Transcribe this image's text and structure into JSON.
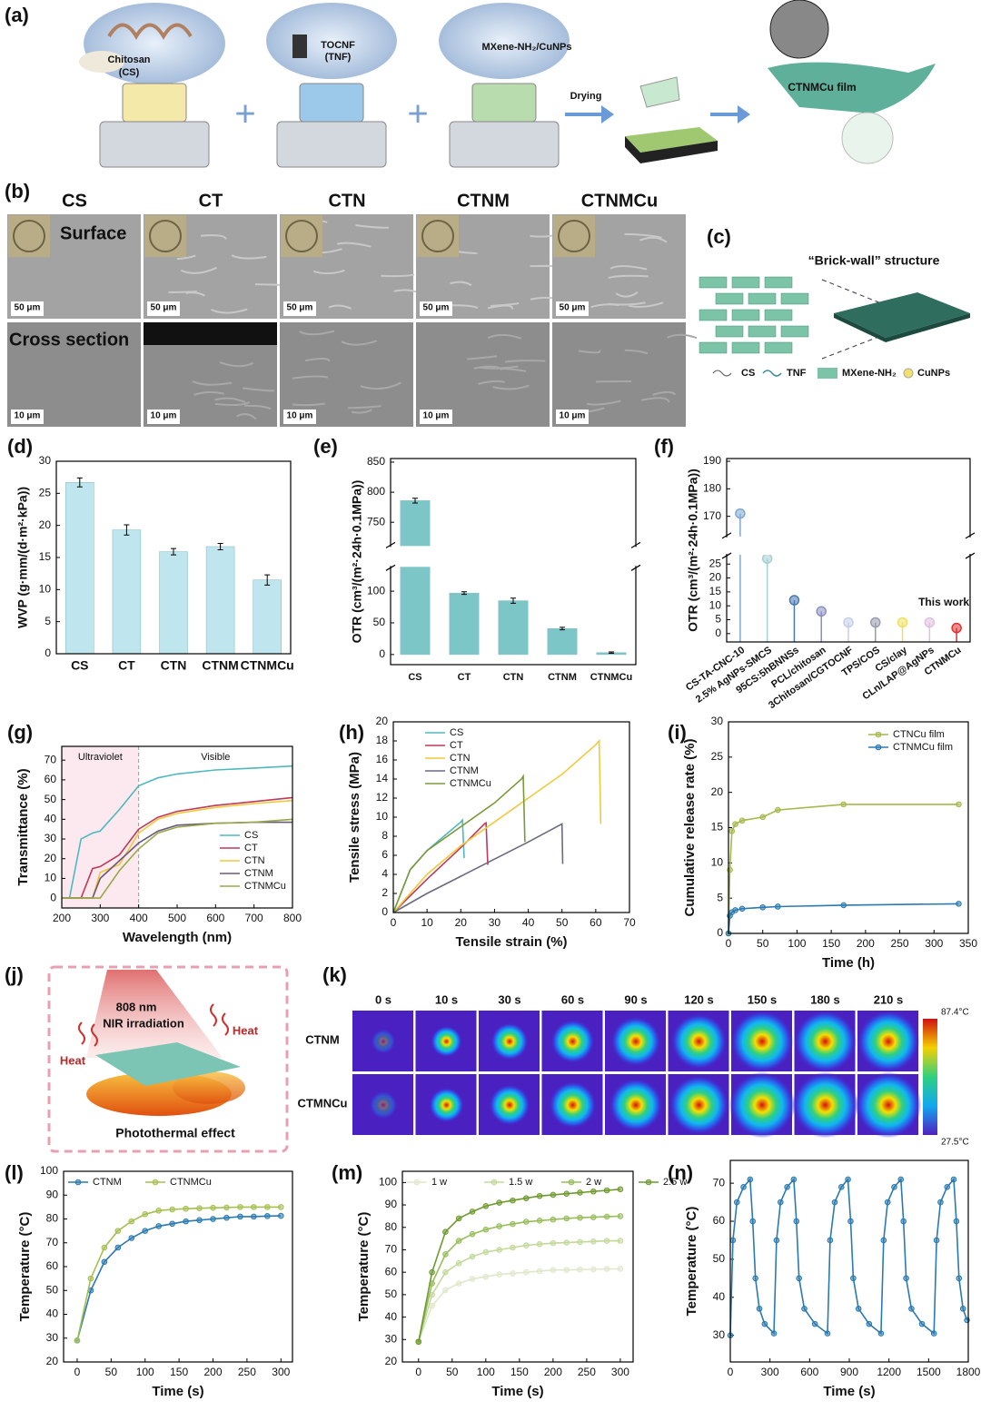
{
  "scheme_a": {
    "label": "(a)",
    "chitosan": [
      "Chitosan",
      "(CS)"
    ],
    "tocnf": [
      "TOCNF",
      "(TNF)"
    ],
    "mxene": "MXene-NH₂/CuNPs",
    "step": "Drying",
    "product": "CTNMCu film"
  },
  "sem_b": {
    "label": "(b)",
    "columns": [
      "CS",
      "CT",
      "CTN",
      "CTNM",
      "CTNMCu"
    ],
    "rows": [
      "Surface",
      "Cross section"
    ],
    "scale_bars": [
      "50 μm",
      "10 μm"
    ]
  },
  "structure_c": {
    "label": "(c)",
    "title": "“Brick-wall” structure",
    "legend": [
      "CS",
      "TNF",
      "MXene-NH₂",
      "CuNPs"
    ]
  },
  "scheme_j": {
    "label": "(j)",
    "beam": [
      "808 nm",
      "NIR irradiation"
    ],
    "heat": [
      "Heat",
      "Heat"
    ],
    "caption": "Photothermal effect"
  },
  "thermal_k": {
    "label": "(k)",
    "times": [
      "0 s",
      "10 s",
      "30 s",
      "60 s",
      "90 s",
      "120 s",
      "150 s",
      "180 s",
      "210 s"
    ],
    "rows": [
      "CTNM",
      "CTMNCu"
    ],
    "scale": [
      "87.4°C",
      "27.5°C"
    ]
  },
  "chart_data": [
    {
      "label": "(d)",
      "type": "bar",
      "ylabel": "WVP (g·mm/(d·m²·kPa))",
      "categories": [
        "CS",
        "CT",
        "CTN",
        "CTNM",
        "CTNMCu"
      ],
      "values": [
        26.7,
        19.3,
        15.9,
        16.7,
        11.5
      ],
      "errors": [
        0.7,
        0.8,
        0.5,
        0.5,
        0.8
      ],
      "color": "#bfe5ee",
      "ylim": [
        0,
        30
      ],
      "yticks": [
        0,
        5,
        10,
        15,
        20,
        25,
        30
      ]
    },
    {
      "label": "(e)",
      "type": "bar",
      "ylabel": "OTR (cm³/(m²·24h·0.1MPa))",
      "categories": [
        "CS",
        "CT",
        "CTN",
        "CTNM",
        "CTNMCu"
      ],
      "values": [
        786,
        97,
        85,
        41,
        3
      ],
      "errors": [
        4,
        2,
        4,
        2,
        1
      ],
      "color": "#7cc6c8",
      "ylim": [
        -16,
        856
      ],
      "ybreak": [
        137,
        712
      ],
      "yticks": [
        0,
        50,
        100,
        750,
        800,
        850
      ]
    },
    {
      "label": "(f)",
      "type": "lollipop",
      "ylabel": "OTR (cm³/(m²·24h·0.1MPa))",
      "categories": [
        "CS-TA-CNC-10",
        "2.5% AgNPs-SMCS",
        "95CS:5hBNNSs",
        "PCL/chitosan",
        "3Chitosan/CGTOCNF",
        "TPS/COS",
        "CS/clay",
        "CLn/LAP@AgNPs",
        "CTNMCu"
      ],
      "values": [
        171,
        27,
        12,
        8,
        4,
        4,
        4,
        4,
        2
      ],
      "colors": [
        "#7fa8d0",
        "#a6d0d6",
        "#4a78b0",
        "#8a8fc0",
        "#c8cde8",
        "#9a9ab0",
        "#f0e060",
        "#e0c0e0",
        "#e03030"
      ],
      "ylim": [
        -3,
        191
      ],
      "ybreak": [
        28,
        163
      ],
      "yticks": [
        0,
        5,
        10,
        15,
        20,
        25,
        170,
        180,
        190
      ],
      "annotation": "This work"
    },
    {
      "label": "(g)",
      "type": "line",
      "xlabel": "Wavelength (nm)",
      "ylabel": "Transmittance (%)",
      "x": [
        200,
        220,
        250,
        280,
        300,
        350,
        400,
        450,
        500,
        600,
        700,
        800
      ],
      "series": [
        {
          "name": "CS",
          "color": "#4fb8bf",
          "values": [
            0,
            0,
            30,
            33,
            34,
            45,
            57,
            61,
            63,
            65,
            66,
            67
          ]
        },
        {
          "name": "CT",
          "color": "#c0395a",
          "values": [
            0,
            0,
            0,
            15,
            16,
            22,
            35,
            41,
            44,
            47,
            49,
            51
          ]
        },
        {
          "name": "CTN",
          "color": "#f0c93c",
          "values": [
            0,
            0,
            0,
            0,
            13,
            17,
            33,
            40,
            43,
            46,
            48,
            49.5
          ]
        },
        {
          "name": "CTNM",
          "color": "#6a5a7a",
          "values": [
            0,
            0,
            0,
            0,
            10,
            19,
            28,
            34,
            37,
            38,
            38.5,
            38.5
          ]
        },
        {
          "name": "CTNMCu",
          "color": "#9aa84a",
          "values": [
            0,
            0,
            0,
            0,
            0,
            14,
            25,
            33,
            36,
            38,
            38.5,
            40
          ]
        }
      ],
      "xlim": [
        200,
        800
      ],
      "xticks": [
        200,
        300,
        400,
        500,
        600,
        700,
        800
      ],
      "ylim": [
        -5,
        77
      ],
      "yticks": [
        0,
        10,
        20,
        30,
        40,
        50,
        60,
        70
      ],
      "divider": 400,
      "annotations": [
        "Ultraviolet",
        "Visible"
      ],
      "legend": "lower right"
    },
    {
      "label": "(h)",
      "type": "line",
      "xlabel": "Tensile strain (%)",
      "ylabel": "Tensile stress (MPa)",
      "series": [
        {
          "name": "CS",
          "color": "#4fb8bf",
          "x": [
            0,
            5,
            10,
            15,
            20,
            20.5,
            21
          ],
          "values": [
            0,
            4.5,
            6.5,
            8,
            9.5,
            9.7,
            5.7
          ]
        },
        {
          "name": "CT",
          "color": "#c0395a",
          "x": [
            0,
            10,
            20,
            27,
            27.5,
            28
          ],
          "values": [
            0,
            3.5,
            6.8,
            9.3,
            9.4,
            5
          ]
        },
        {
          "name": "CTN",
          "color": "#f0c93c",
          "x": [
            0,
            10,
            20,
            30,
            40,
            50,
            60,
            61,
            61.5
          ],
          "values": [
            0,
            4,
            7,
            9.5,
            12,
            14.5,
            17.6,
            18,
            9.3
          ]
        },
        {
          "name": "CTNM",
          "color": "#6a6a80",
          "x": [
            0,
            10,
            20,
            30,
            40,
            50,
            50.2
          ],
          "values": [
            0,
            2,
            3.8,
            5.6,
            7.4,
            9.3,
            5.1
          ]
        },
        {
          "name": "CTNMCu",
          "color": "#7a9a3a",
          "x": [
            0,
            5,
            10,
            20,
            30,
            38,
            38.5,
            39
          ],
          "values": [
            0,
            4.5,
            6.5,
            9,
            11.5,
            14,
            14.3,
            7.4
          ]
        }
      ],
      "xlim": [
        0,
        70
      ],
      "xticks": [
        0,
        10,
        20,
        30,
        40,
        50,
        60,
        70
      ],
      "ylim": [
        0,
        20
      ],
      "yticks": [
        0,
        2,
        4,
        6,
        8,
        10,
        12,
        14,
        16,
        18,
        20
      ],
      "legend": "upper left"
    },
    {
      "label": "(i)",
      "type": "line",
      "xlabel": "Time (h)",
      "ylabel": "Cumulative release rate (%)",
      "x": [
        0,
        2,
        5,
        10,
        20,
        50,
        72,
        168,
        336
      ],
      "series": [
        {
          "name": "CTNCu film",
          "color": "#a5b84a",
          "values": [
            0,
            9,
            14.5,
            15.5,
            16,
            16.5,
            17.5,
            18.3,
            18.3
          ]
        },
        {
          "name": "CTNMCu film",
          "color": "#2a7ab0",
          "values": [
            0,
            2.5,
            3,
            3.3,
            3.5,
            3.7,
            3.8,
            4,
            4.2
          ]
        }
      ],
      "xlim": [
        0,
        350
      ],
      "xticks": [
        0,
        50,
        100,
        150,
        200,
        250,
        300,
        350
      ],
      "ylim": [
        0,
        30
      ],
      "yticks": [
        0,
        5,
        10,
        15,
        20,
        25,
        30
      ],
      "markers": true,
      "legend": "upper right"
    },
    {
      "label": "(l)",
      "type": "line",
      "xlabel": "Time (s)",
      "ylabel": "Temperature (°C)",
      "x": [
        0,
        20,
        40,
        60,
        80,
        100,
        120,
        140,
        160,
        180,
        200,
        220,
        240,
        260,
        280,
        300
      ],
      "series": [
        {
          "name": "CTNM",
          "color": "#2a7ab0",
          "values": [
            29,
            50,
            62,
            68,
            72,
            75,
            77,
            78,
            79,
            79.5,
            80,
            80.5,
            81,
            81,
            81.2,
            81.3
          ]
        },
        {
          "name": "CTNMCu",
          "color": "#a5c050",
          "values": [
            29,
            55,
            68,
            75,
            79,
            82,
            83.5,
            84,
            84.3,
            84.5,
            84.7,
            84.8,
            85,
            85,
            85,
            85
          ]
        }
      ],
      "xlim": [
        -20,
        317
      ],
      "xticks": [
        0,
        50,
        100,
        150,
        200,
        250,
        300
      ],
      "ylim": [
        20,
        100
      ],
      "yticks": [
        20,
        30,
        40,
        50,
        60,
        70,
        80,
        90,
        100
      ],
      "markers": true,
      "legend": "upper left",
      "legend_orientation": "horizontal"
    },
    {
      "label": "(m)",
      "type": "line",
      "xlabel": "Time (s)",
      "ylabel": "Temperature (°C)",
      "x": [
        0,
        20,
        40,
        60,
        80,
        100,
        120,
        140,
        160,
        180,
        200,
        220,
        240,
        260,
        280,
        300
      ],
      "series": [
        {
          "name": "1 w",
          "color": "#dfe8cc",
          "values": [
            29,
            45,
            52,
            55,
            57,
            58,
            59,
            59.5,
            60,
            60.5,
            61,
            61,
            61.2,
            61.3,
            61.5,
            61.5
          ]
        },
        {
          "name": "1.5 w",
          "color": "#c3d99a",
          "values": [
            29,
            50,
            60,
            64,
            67,
            69,
            70,
            71,
            72,
            72.5,
            73,
            73.2,
            73.5,
            73.7,
            74,
            74
          ]
        },
        {
          "name": "2 w",
          "color": "#98bd5c",
          "values": [
            29,
            55,
            68,
            74,
            77,
            79,
            80.5,
            81.5,
            82.5,
            83,
            83.5,
            84,
            84.3,
            84.5,
            84.8,
            85
          ]
        },
        {
          "name": "2.5 w",
          "color": "#6f9a30",
          "values": [
            29,
            60,
            78,
            84,
            87,
            89.5,
            91,
            92,
            93,
            94,
            94.5,
            95,
            95.5,
            96,
            96.5,
            97
          ]
        }
      ],
      "xlim": [
        -24,
        319
      ],
      "xticks": [
        0,
        50,
        100,
        150,
        200,
        250,
        300
      ],
      "ylim": [
        20,
        105
      ],
      "yticks": [
        20,
        30,
        40,
        50,
        60,
        70,
        80,
        90,
        100
      ],
      "markers": true,
      "legend": "upper left",
      "legend_orientation": "horizontal"
    },
    {
      "label": "(n)",
      "type": "line",
      "xlabel": "Time (s)",
      "ylabel": "Temperature (°C)",
      "x": [
        0,
        20,
        50,
        100,
        150,
        170,
        190,
        220,
        260,
        330,
        350,
        380,
        430,
        480,
        500,
        520,
        560,
        640,
        735,
        755,
        790,
        840,
        890,
        910,
        930,
        970,
        1050,
        1140,
        1160,
        1190,
        1240,
        1290,
        1310,
        1330,
        1370,
        1450,
        1540,
        1560,
        1590,
        1640,
        1690,
        1710,
        1730,
        1760,
        1790
      ],
      "series": [
        {
          "color": "#2a7ab0",
          "values": [
            30,
            55,
            65,
            69,
            71,
            60,
            45,
            37,
            33,
            30.5,
            55,
            65,
            69,
            71,
            60,
            45,
            37,
            33,
            30.5,
            55,
            65,
            69,
            71,
            60,
            45,
            37,
            33,
            30.5,
            55,
            65,
            69,
            71,
            60,
            45,
            37,
            33,
            30.5,
            55,
            65,
            69,
            71,
            60,
            45,
            37,
            34
          ]
        }
      ],
      "xlim": [
        0,
        1800
      ],
      "xticks": [
        0,
        300,
        600,
        900,
        1200,
        1500,
        1800
      ],
      "ylim": [
        23,
        76
      ],
      "yticks": [
        30,
        40,
        50,
        60,
        70
      ],
      "markers": true
    }
  ]
}
